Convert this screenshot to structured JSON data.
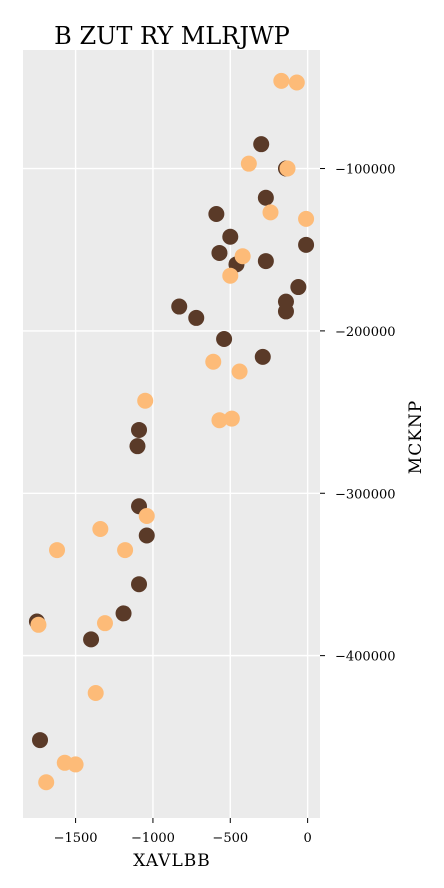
{
  "chart_data": {
    "type": "scatter",
    "title": "B ZUT RY MLRJWP",
    "xlabel": "XAVLBB",
    "ylabel": "MCKNP",
    "xlim": [
      -1840,
      80
    ],
    "ylim": [
      -500000,
      -27000
    ],
    "xticks": [
      -1500,
      -1000,
      -500,
      0
    ],
    "xtick_labels": [
      "−1500",
      "−1000",
      "−500",
      "0"
    ],
    "yticks": [
      -100000,
      -200000,
      -300000,
      -400000
    ],
    "ytick_labels": [
      "−100000",
      "−200000",
      "−300000",
      "−400000"
    ],
    "y_axis_position": "right",
    "grid": true,
    "background": "#ebebeb",
    "series": [
      {
        "color": "#5a3a28",
        "points": [
          [
            -300,
            -85000
          ],
          [
            -140,
            -100000
          ],
          [
            -270,
            -118000
          ],
          [
            -590,
            -128000
          ],
          [
            -500,
            -142000
          ],
          [
            -570,
            -152000
          ],
          [
            -460,
            -159000
          ],
          [
            -270,
            -157000
          ],
          [
            -10,
            -147000
          ],
          [
            -60,
            -173000
          ],
          [
            -140,
            -182000
          ],
          [
            -140,
            -188000
          ],
          [
            -830,
            -185000
          ],
          [
            -720,
            -192000
          ],
          [
            -540,
            -205000
          ],
          [
            -290,
            -216000
          ],
          [
            -1090,
            -261000
          ],
          [
            -1100,
            -271000
          ],
          [
            -1090,
            -308000
          ],
          [
            -1040,
            -326000
          ],
          [
            -1090,
            -356000
          ],
          [
            -1190,
            -374000
          ],
          [
            -1400,
            -390000
          ],
          [
            -1750,
            -379000
          ],
          [
            -1730,
            -452000
          ]
        ]
      },
      {
        "color": "#fdbb78",
        "points": [
          [
            -170,
            -46000
          ],
          [
            -70,
            -47000
          ],
          [
            -380,
            -97000
          ],
          [
            -130,
            -100000
          ],
          [
            -240,
            -127000
          ],
          [
            -10,
            -131000
          ],
          [
            -420,
            -154000
          ],
          [
            -500,
            -166000
          ],
          [
            -610,
            -219000
          ],
          [
            -440,
            -225000
          ],
          [
            -1050,
            -243000
          ],
          [
            -570,
            -255000
          ],
          [
            -490,
            -254000
          ],
          [
            -1040,
            -314000
          ],
          [
            -1340,
            -322000
          ],
          [
            -1620,
            -335000
          ],
          [
            -1180,
            -335000
          ],
          [
            -1310,
            -380000
          ],
          [
            -1740,
            -381000
          ],
          [
            -1370,
            -423000
          ],
          [
            -1570,
            -466000
          ],
          [
            -1500,
            -467000
          ],
          [
            -1690,
            -478000
          ]
        ]
      }
    ]
  }
}
